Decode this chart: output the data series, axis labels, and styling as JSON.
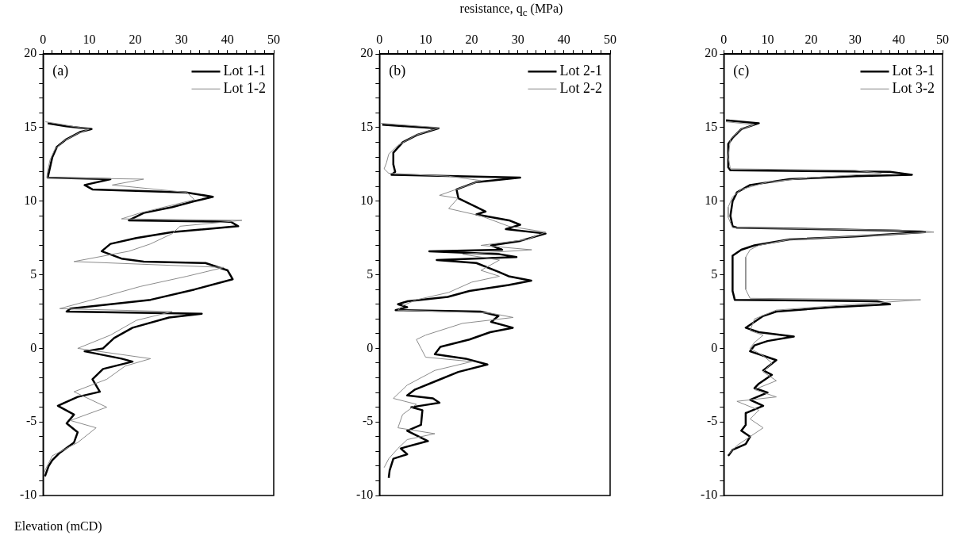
{
  "chart_data": [
    {
      "type": "line",
      "ylabel": "Elevation (mCD)",
      "annotations": [
        "(a)"
      ],
      "xlim": [
        0,
        50
      ],
      "ylim": [
        -10,
        20
      ],
      "xticks": [
        0,
        {
          "value": 2,
          "label": null
        },
        {
          "value": 4,
          "label": null
        },
        {
          "value": 6,
          "label": null
        },
        {
          "value": 8,
          "label": null
        },
        10,
        {
          "value": 12,
          "label": null
        },
        {
          "value": 14,
          "label": null
        },
        {
          "value": 16,
          "label": null
        },
        {
          "value": 18,
          "label": null
        },
        20,
        {
          "value": 22,
          "label": null
        },
        {
          "value": 24,
          "label": null
        },
        {
          "value": 26,
          "label": null
        },
        {
          "value": 28,
          "label": null
        },
        30,
        {
          "value": 32,
          "label": null
        },
        {
          "value": 34,
          "label": null
        },
        {
          "value": 36,
          "label": null
        },
        {
          "value": 38,
          "label": null
        },
        40,
        {
          "value": 42,
          "label": null
        },
        {
          "value": 44,
          "label": null
        },
        {
          "value": 46,
          "label": null
        },
        {
          "value": 48,
          "label": null
        },
        50
      ],
      "yticks": [
        -10,
        {
          "value": -9,
          "label": null
        },
        {
          "value": -8,
          "label": null
        },
        {
          "value": -7,
          "label": null
        },
        {
          "value": -6,
          "label": null
        },
        -5,
        {
          "value": -4,
          "label": null
        },
        {
          "value": -3,
          "label": null
        },
        {
          "value": -2,
          "label": null
        },
        {
          "value": -1,
          "label": null
        },
        0,
        {
          "value": 1,
          "label": null
        },
        {
          "value": 2,
          "label": null
        },
        {
          "value": 3,
          "label": null
        },
        {
          "value": 4,
          "label": null
        },
        5,
        {
          "value": 6,
          "label": null
        },
        {
          "value": 7,
          "label": null
        },
        {
          "value": 8,
          "label": null
        },
        {
          "value": 9,
          "label": null
        },
        10,
        {
          "value": 11,
          "label": null
        },
        {
          "value": 12,
          "label": null
        },
        {
          "value": 13,
          "label": null
        },
        {
          "value": 14,
          "label": null
        },
        15,
        {
          "value": 16,
          "label": null
        },
        {
          "value": 17,
          "label": null
        },
        {
          "value": 18,
          "label": null
        },
        {
          "value": 19,
          "label": null
        },
        20
      ],
      "grid": false,
      "legend": "top right",
      "marker": "none",
      "series": [
        {
          "name": "Lot 1-1",
          "color": "#000000",
          "x": [
            1,
            5,
            10.5,
            8,
            5,
            3,
            2,
            1.5,
            1,
            14.6,
            9,
            10.7,
            31,
            36.8,
            32.8,
            28,
            21.8,
            18.6,
            40.7,
            42.3,
            28,
            20.2,
            14.6,
            12.7,
            17,
            21.8,
            35.2,
            40,
            41.1,
            32.8,
            23.3,
            5.9,
            5.1,
            34.4,
            27.3,
            19.4,
            15.4,
            13,
            9,
            17,
            19.4,
            13,
            10.7,
            12.3,
            7.5,
            3.2,
            6.7,
            5.1,
            7.5,
            6.7,
            3.6,
            2,
            1.2,
            0.4
          ],
          "values": [
            15.3,
            15.1,
            14.9,
            14.7,
            14.2,
            13.7,
            13,
            12.3,
            11.6,
            11.5,
            11.1,
            10.8,
            10.6,
            10.3,
            10,
            9.6,
            9.2,
            8.7,
            8.6,
            8.3,
            7.9,
            7.5,
            7.1,
            6.6,
            6.1,
            5.9,
            5.8,
            5.3,
            4.7,
            4,
            3.3,
            2.7,
            2.5,
            2.35,
            2.1,
            1.4,
            0.7,
            0,
            -0.2,
            -0.7,
            -0.9,
            -1.4,
            -2.1,
            -2.95,
            -3.3,
            -3.9,
            -4.5,
            -5.1,
            -5.7,
            -6.4,
            -7.1,
            -7.6,
            -8,
            -8.7
          ]
        },
        {
          "name": "Lot 1-2",
          "color": "#8c8c8c",
          "x": [
            0.5,
            4.4,
            10,
            7.5,
            4.5,
            2.5,
            1.5,
            1,
            0.8,
            21.8,
            15,
            31.2,
            32.8,
            21,
            17,
            43.1,
            29.7,
            28,
            23.3,
            18.6,
            6.7,
            39.2,
            31.2,
            21,
            13,
            3.6,
            28,
            20.2,
            14.6,
            7.5,
            23.3,
            17.8,
            13.8,
            6.7,
            13.8,
            5.9,
            11.5,
            7.5,
            2,
            0.4,
            0
          ],
          "values": [
            15.4,
            15.2,
            14.9,
            14.6,
            14.1,
            13.5,
            12.8,
            12.1,
            11.6,
            11.5,
            11.1,
            10.6,
            10.1,
            9.2,
            8.8,
            8.7,
            8.3,
            7.8,
            7.1,
            6.6,
            5.9,
            5.5,
            4.9,
            4.2,
            3.5,
            2.7,
            2.5,
            1.9,
            0.9,
            0,
            -0.7,
            -1.2,
            -2.1,
            -2.95,
            -4,
            -4.9,
            -5.4,
            -6.4,
            -7.3,
            -8.3,
            -8.7
          ]
        }
      ]
    },
    {
      "type": "line",
      "xlabel": "resistance, q$_{c}$ (MPa)",
      "annotations": [
        "(b)"
      ],
      "xlim": [
        0,
        50
      ],
      "ylim": [
        -10,
        20
      ],
      "xticks": [
        0,
        {
          "value": 2,
          "label": null
        },
        {
          "value": 4,
          "label": null
        },
        {
          "value": 6,
          "label": null
        },
        {
          "value": 8,
          "label": null
        },
        10,
        {
          "value": 12,
          "label": null
        },
        {
          "value": 14,
          "label": null
        },
        {
          "value": 16,
          "label": null
        },
        {
          "value": 18,
          "label": null
        },
        20,
        {
          "value": 22,
          "label": null
        },
        {
          "value": 24,
          "label": null
        },
        {
          "value": 26,
          "label": null
        },
        {
          "value": 28,
          "label": null
        },
        30,
        {
          "value": 32,
          "label": null
        },
        {
          "value": 34,
          "label": null
        },
        {
          "value": 36,
          "label": null
        },
        {
          "value": 38,
          "label": null
        },
        40,
        {
          "value": 42,
          "label": null
        },
        {
          "value": 44,
          "label": null
        },
        {
          "value": 46,
          "label": null
        },
        {
          "value": 48,
          "label": null
        },
        50
      ],
      "yticks": [
        -10,
        {
          "value": -9,
          "label": null
        },
        {
          "value": -8,
          "label": null
        },
        {
          "value": -7,
          "label": null
        },
        {
          "value": -6,
          "label": null
        },
        -5,
        {
          "value": -4,
          "label": null
        },
        {
          "value": -3,
          "label": null
        },
        {
          "value": -2,
          "label": null
        },
        {
          "value": -1,
          "label": null
        },
        0,
        {
          "value": 1,
          "label": null
        },
        {
          "value": 2,
          "label": null
        },
        {
          "value": 3,
          "label": null
        },
        {
          "value": 4,
          "label": null
        },
        5,
        {
          "value": 6,
          "label": null
        },
        {
          "value": 7,
          "label": null
        },
        {
          "value": 8,
          "label": null
        },
        {
          "value": 9,
          "label": null
        },
        10,
        {
          "value": 11,
          "label": null
        },
        {
          "value": 12,
          "label": null
        },
        {
          "value": 13,
          "label": null
        },
        {
          "value": 14,
          "label": null
        },
        15,
        {
          "value": 16,
          "label": null
        },
        {
          "value": 17,
          "label": null
        },
        {
          "value": 18,
          "label": null
        },
        {
          "value": 19,
          "label": null
        },
        20
      ],
      "grid": false,
      "legend": "top right",
      "marker": "none",
      "series": [
        {
          "name": "Lot 2-1",
          "color": "#000000",
          "x": [
            0.6,
            12.8,
            8.1,
            5,
            3,
            3,
            3.4,
            2.6,
            30.5,
            21,
            16.7,
            17.1,
            21,
            23,
            21,
            28.1,
            30.5,
            27.4,
            36,
            30.5,
            24.2,
            26.6,
            10.8,
            26,
            29.7,
            12.4,
            21,
            25.8,
            28,
            32.9,
            28,
            19.5,
            14.8,
            6.1,
            4,
            6,
            3.5,
            21.9,
            25.8,
            24.2,
            28.9,
            24,
            19.5,
            13.2,
            12,
            18.7,
            23.4,
            17.1,
            12.4,
            7.7,
            6,
            11.6,
            13,
            6.9,
            9.3,
            9,
            6,
            10.5,
            4.6,
            6,
            3,
            2.2,
            2
          ],
          "values": [
            15.2,
            14.95,
            14.5,
            14,
            13.3,
            12.5,
            12,
            11.8,
            11.6,
            11.3,
            10.8,
            10.2,
            9.6,
            9.3,
            9.1,
            8.7,
            8.4,
            8.1,
            7.8,
            7.3,
            7,
            6.7,
            6.6,
            6.4,
            6.2,
            6,
            5.8,
            5.2,
            4.9,
            4.6,
            4.3,
            3.9,
            3.5,
            3.2,
            3,
            2.8,
            2.6,
            2.5,
            2.2,
            1.8,
            1.4,
            1.1,
            0.6,
            0.1,
            -0.4,
            -0.7,
            -1.1,
            -1.6,
            -2.2,
            -2.8,
            -3.2,
            -3.4,
            -3.7,
            -4,
            -4.2,
            -5.2,
            -5.6,
            -6.3,
            -6.8,
            -7.2,
            -7.5,
            -8.3,
            -8.8
          ]
        },
        {
          "name": "Lot 2-2",
          "color": "#8c8c8c",
          "x": [
            0,
            13,
            8,
            4,
            2,
            1.5,
            1,
            2,
            15,
            22,
            13,
            17,
            15,
            22,
            28,
            36,
            32,
            22,
            33,
            18,
            26,
            22,
            26,
            20,
            15,
            8,
            5,
            4,
            24,
            29,
            18,
            10,
            8,
            9,
            10,
            20,
            12,
            6,
            3,
            8,
            5,
            4,
            12,
            6,
            4,
            2,
            1
          ],
          "values": [
            15.3,
            15,
            14.5,
            13.8,
            13.2,
            12.6,
            12.2,
            11.9,
            11.7,
            11.4,
            10.4,
            10.2,
            9.5,
            9,
            8.3,
            7.9,
            7.4,
            7,
            6.7,
            6.4,
            6,
            5.3,
            4.9,
            4.5,
            3.8,
            3.3,
            2.9,
            2.6,
            2.4,
            2.1,
            1.7,
            0.9,
            0.6,
            0,
            -0.6,
            -0.9,
            -1.5,
            -2.5,
            -3.4,
            -3.8,
            -4.5,
            -5.4,
            -5.8,
            -6.2,
            -6.8,
            -7.5,
            -8.1
          ]
        }
      ]
    },
    {
      "type": "line",
      "annotations": [
        "(c)"
      ],
      "xlim": [
        0,
        50
      ],
      "ylim": [
        -10,
        20
      ],
      "xticks": [
        0,
        {
          "value": 2,
          "label": null
        },
        {
          "value": 4,
          "label": null
        },
        {
          "value": 6,
          "label": null
        },
        {
          "value": 8,
          "label": null
        },
        10,
        {
          "value": 12,
          "label": null
        },
        {
          "value": 14,
          "label": null
        },
        {
          "value": 16,
          "label": null
        },
        {
          "value": 18,
          "label": null
        },
        20,
        {
          "value": 22,
          "label": null
        },
        {
          "value": 24,
          "label": null
        },
        {
          "value": 26,
          "label": null
        },
        {
          "value": 28,
          "label": null
        },
        30,
        {
          "value": 32,
          "label": null
        },
        {
          "value": 34,
          "label": null
        },
        {
          "value": 36,
          "label": null
        },
        {
          "value": 38,
          "label": null
        },
        40,
        {
          "value": 42,
          "label": null
        },
        {
          "value": 44,
          "label": null
        },
        {
          "value": 46,
          "label": null
        },
        {
          "value": 48,
          "label": null
        },
        50
      ],
      "yticks": [
        -10,
        {
          "value": -9,
          "label": null
        },
        {
          "value": -8,
          "label": null
        },
        {
          "value": -7,
          "label": null
        },
        {
          "value": -6,
          "label": null
        },
        -5,
        {
          "value": -4,
          "label": null
        },
        {
          "value": -3,
          "label": null
        },
        {
          "value": -2,
          "label": null
        },
        {
          "value": -1,
          "label": null
        },
        0,
        {
          "value": 1,
          "label": null
        },
        {
          "value": 2,
          "label": null
        },
        {
          "value": 3,
          "label": null
        },
        {
          "value": 4,
          "label": null
        },
        5,
        {
          "value": 6,
          "label": null
        },
        {
          "value": 7,
          "label": null
        },
        {
          "value": 8,
          "label": null
        },
        {
          "value": 9,
          "label": null
        },
        10,
        {
          "value": 11,
          "label": null
        },
        {
          "value": 12,
          "label": null
        },
        {
          "value": 13,
          "label": null
        },
        {
          "value": 14,
          "label": null
        },
        15,
        {
          "value": 16,
          "label": null
        },
        {
          "value": 17,
          "label": null
        },
        {
          "value": 18,
          "label": null
        },
        {
          "value": 19,
          "label": null
        },
        20
      ],
      "grid": false,
      "legend": "top right",
      "marker": "none",
      "series": [
        {
          "name": "Lot 3-1",
          "color": "#000000",
          "x": [
            0.5,
            8,
            4,
            2,
            1,
            1,
            1.5,
            38,
            43,
            30,
            15,
            6,
            3,
            2,
            1.5,
            2,
            3,
            40,
            46,
            30,
            15,
            7,
            4,
            2,
            2,
            2.5,
            35,
            38,
            25,
            12,
            9,
            5,
            8,
            16,
            10,
            7,
            6,
            10,
            12,
            9,
            11,
            8,
            7,
            10,
            6,
            9,
            5,
            5,
            4,
            6,
            5,
            2,
            1
          ],
          "values": [
            15.5,
            15.3,
            14.9,
            14.3,
            13.9,
            12.3,
            12.1,
            12,
            11.8,
            11.7,
            11.5,
            11.1,
            10.6,
            10,
            9,
            8.3,
            8.2,
            8,
            7.9,
            7.6,
            7.4,
            7,
            6.7,
            6.3,
            3.9,
            3.3,
            3.2,
            3,
            2.8,
            2.5,
            2.2,
            1.4,
            1.1,
            0.8,
            0.5,
            0.2,
            -0.2,
            -0.6,
            -0.8,
            -1.5,
            -1.8,
            -2.4,
            -2.7,
            -3,
            -3.5,
            -3.9,
            -4.4,
            -5.2,
            -5.6,
            -6,
            -6.5,
            -6.9,
            -7.3
          ]
        },
        {
          "name": "Lot 3-2",
          "color": "#8c8c8c",
          "x": [
            0.5,
            7,
            4,
            1.5,
            1,
            1.5,
            30,
            36,
            20,
            10,
            4,
            2,
            1,
            1,
            2,
            45,
            48,
            35,
            15,
            8,
            6,
            5,
            5,
            6,
            45,
            30,
            12,
            7,
            6,
            9,
            7,
            6,
            9,
            11,
            9,
            12,
            7,
            12,
            3,
            8,
            6,
            9,
            6,
            3,
            1
          ],
          "values": [
            15.4,
            15.2,
            14.9,
            14.2,
            13,
            12.2,
            12.1,
            11.9,
            11.6,
            11.3,
            10.8,
            10.3,
            9.6,
            8.9,
            8.2,
            8,
            7.9,
            7.7,
            7.4,
            7,
            6.7,
            6.2,
            4,
            3.4,
            3.3,
            3,
            2.6,
            2,
            1.2,
            0.9,
            0.4,
            0,
            -0.5,
            -1,
            -1.6,
            -2.2,
            -2.8,
            -3.3,
            -3.6,
            -4.2,
            -4.8,
            -5.4,
            -6,
            -6.6,
            -7.2
          ]
        }
      ]
    }
  ]
}
